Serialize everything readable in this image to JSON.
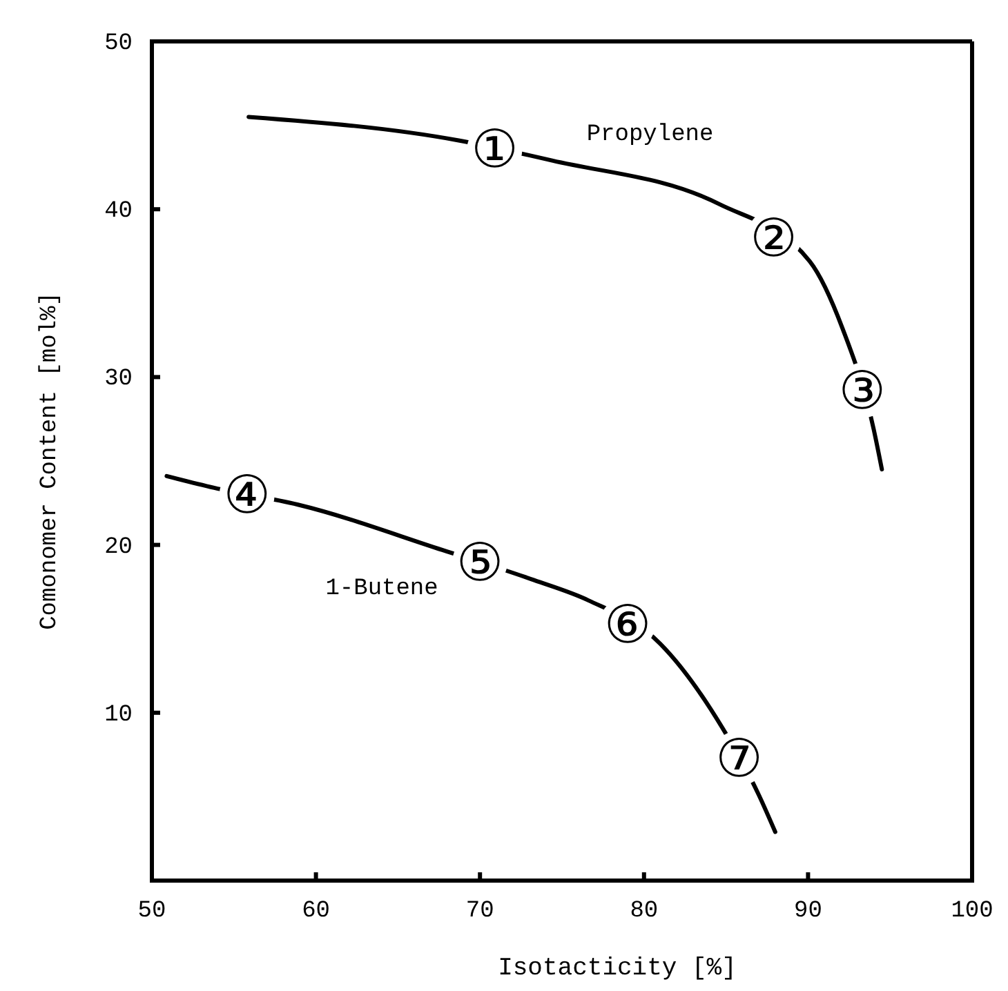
{
  "chart_data": {
    "type": "line",
    "xlabel": "Isotacticity [%]",
    "ylabel": "Comonomer Content [mol%]",
    "xlim": [
      50,
      100
    ],
    "xticks": [
      50,
      60,
      70,
      80,
      90,
      100
    ],
    "ylim": [
      0,
      50
    ],
    "yticks": [
      10,
      20,
      30,
      40,
      50
    ],
    "grid": false,
    "legend": false,
    "marker": "none",
    "line_style": "solid",
    "series": [
      {
        "name": "Propylene",
        "color": "#000000",
        "x": [
          55.9,
          68.7,
          74.4,
          84.6,
          90.1,
          92.1,
          94.0,
          94.5
        ],
        "values": [
          45.5,
          44.1,
          42.9,
          40.3,
          36.9,
          32.9,
          26.9,
          24.5
        ]
      },
      {
        "name": "1-Butene",
        "color": "#000000",
        "x": [
          50.9,
          53.8,
          58.9,
          67.7,
          73.3,
          76.6,
          81.0,
          84.4,
          87.0,
          88.0
        ],
        "values": [
          24.1,
          23.4,
          22.4,
          19.7,
          17.9,
          16.7,
          14.1,
          9.7,
          5.1,
          2.9
        ]
      }
    ],
    "annotations": [
      {
        "text": "①",
        "x": 70.9,
        "y": 43.6
      },
      {
        "text": "②",
        "x": 87.9,
        "y": 38.3
      },
      {
        "text": "③",
        "x": 93.3,
        "y": 29.2
      },
      {
        "text": "④",
        "x": 55.8,
        "y": 23.0
      },
      {
        "text": "⑤",
        "x": 70.0,
        "y": 19.0
      },
      {
        "text": "⑥",
        "x": 79.0,
        "y": 15.3
      },
      {
        "text": "⑦",
        "x": 85.8,
        "y": 7.3
      }
    ]
  }
}
